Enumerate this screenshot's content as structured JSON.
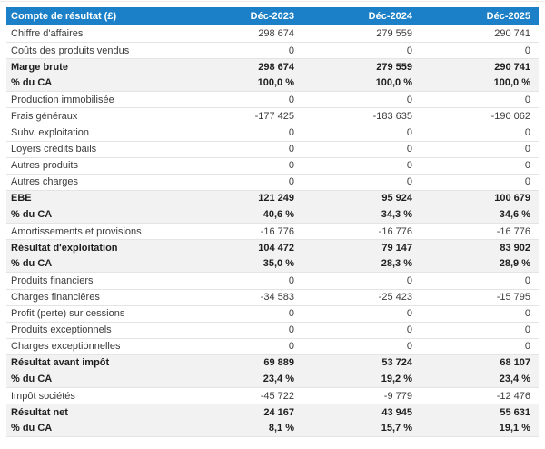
{
  "colors": {
    "header_bg": "#1b80c7",
    "header_text": "#ffffff",
    "section_row_bg": "#f2f2f2",
    "row_border": "#e4e4e4",
    "text_normal": "#3b3b3b",
    "text_bold": "#1f1f1f",
    "page_bg": "#ffffff"
  },
  "table": {
    "title_column": "Compte de résultat (£)",
    "period_columns": [
      "Déc-2023",
      "Déc-2024",
      "Déc-2025"
    ],
    "rows": [
      {
        "label": "Chiffre d'affaires",
        "values": [
          "298 674",
          "279 559",
          "290 741"
        ],
        "section": false,
        "sub": false
      },
      {
        "label": "Coûts des produits vendus",
        "values": [
          "0",
          "0",
          "0"
        ],
        "section": false,
        "sub": false
      },
      {
        "label": "Marge brute",
        "values": [
          "298 674",
          "279 559",
          "290 741"
        ],
        "section": true,
        "sub": false
      },
      {
        "label": "% du CA",
        "values": [
          "100,0 %",
          "100,0 %",
          "100,0 %"
        ],
        "section": true,
        "sub": true
      },
      {
        "label": "Production immobilisée",
        "values": [
          "0",
          "0",
          "0"
        ],
        "section": false,
        "sub": false
      },
      {
        "label": "Frais généraux",
        "values": [
          "-177 425",
          "-183 635",
          "-190 062"
        ],
        "section": false,
        "sub": false
      },
      {
        "label": "Subv. exploitation",
        "values": [
          "0",
          "0",
          "0"
        ],
        "section": false,
        "sub": false
      },
      {
        "label": "Loyers crédits bails",
        "values": [
          "0",
          "0",
          "0"
        ],
        "section": false,
        "sub": false
      },
      {
        "label": "Autres produits",
        "values": [
          "0",
          "0",
          "0"
        ],
        "section": false,
        "sub": false
      },
      {
        "label": "Autres charges",
        "values": [
          "0",
          "0",
          "0"
        ],
        "section": false,
        "sub": false
      },
      {
        "label": "EBE",
        "values": [
          "121 249",
          "95 924",
          "100 679"
        ],
        "section": true,
        "sub": false
      },
      {
        "label": "% du CA",
        "values": [
          "40,6 %",
          "34,3 %",
          "34,6 %"
        ],
        "section": true,
        "sub": true
      },
      {
        "label": "Amortissements et provisions",
        "values": [
          "-16 776",
          "-16 776",
          "-16 776"
        ],
        "section": false,
        "sub": false
      },
      {
        "label": "Résultat d'exploitation",
        "values": [
          "104 472",
          "79 147",
          "83 902"
        ],
        "section": true,
        "sub": false
      },
      {
        "label": "% du CA",
        "values": [
          "35,0 %",
          "28,3 %",
          "28,9 %"
        ],
        "section": true,
        "sub": true
      },
      {
        "label": "Produits financiers",
        "values": [
          "0",
          "0",
          "0"
        ],
        "section": false,
        "sub": false
      },
      {
        "label": "Charges financières",
        "values": [
          "-34 583",
          "-25 423",
          "-15 795"
        ],
        "section": false,
        "sub": false
      },
      {
        "label": "Profit (perte) sur cessions",
        "values": [
          "0",
          "0",
          "0"
        ],
        "section": false,
        "sub": false
      },
      {
        "label": "Produits exceptionnels",
        "values": [
          "0",
          "0",
          "0"
        ],
        "section": false,
        "sub": false
      },
      {
        "label": "Charges exceptionnelles",
        "values": [
          "0",
          "0",
          "0"
        ],
        "section": false,
        "sub": false
      },
      {
        "label": "Résultat avant impôt",
        "values": [
          "69 889",
          "53 724",
          "68 107"
        ],
        "section": true,
        "sub": false
      },
      {
        "label": "% du CA",
        "values": [
          "23,4 %",
          "19,2 %",
          "23,4 %"
        ],
        "section": true,
        "sub": true
      },
      {
        "label": "Impôt sociétés",
        "values": [
          "-45 722",
          "-9 779",
          "-12 476"
        ],
        "section": false,
        "sub": false
      },
      {
        "label": "Résultat net",
        "values": [
          "24 167",
          "43 945",
          "55 631"
        ],
        "section": true,
        "sub": false
      },
      {
        "label": "% du CA",
        "values": [
          "8,1 %",
          "15,7 %",
          "19,1 %"
        ],
        "section": true,
        "sub": true
      }
    ]
  }
}
